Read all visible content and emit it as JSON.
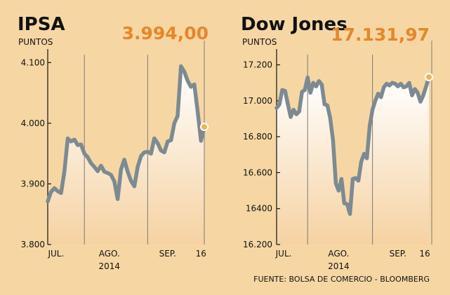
{
  "source_note": "FUENTE: BOLSA DE COMERCIO - BLOOMBERG",
  "colors": {
    "background": "#f6d7a4",
    "plot_top": "#ffffff",
    "plot_bottom": "#f6d2a2",
    "line": "#7d8a92",
    "accent": "#e8862a",
    "marker": "#f2b447"
  },
  "chart_data": [
    {
      "type": "area",
      "title": "IPSA",
      "unit_label": "PUNTOS",
      "last_value_label": "3.994,00",
      "ylim": [
        3800,
        4120
      ],
      "yticks": [
        3800,
        3900,
        4000,
        4100
      ],
      "ytick_labels": [
        "3.800",
        "3.900",
        "4.000",
        "4.100"
      ],
      "xlim": [
        0,
        47
      ],
      "month_labels": [
        {
          "label": "JUL.",
          "x": 2.5
        },
        {
          "label": "AGO.",
          "x": 18.5
        },
        {
          "label": "SEP.",
          "x": 36
        },
        {
          "label": "16",
          "x": 46
        }
      ],
      "year_label": {
        "label": "2014",
        "x": 18.5
      },
      "month_dividers": [
        11,
        30,
        47
      ],
      "grid": false,
      "series": [
        {
          "values": [
            3871,
            3887,
            3893,
            3888,
            3885,
            3920,
            3975,
            3970,
            3973,
            3964,
            3965,
            3950,
            3944,
            3934,
            3928,
            3921,
            3930,
            3920,
            3918,
            3915,
            3904,
            3875,
            3924,
            3940,
            3920,
            3905,
            3896,
            3928,
            3946,
            3952,
            3953,
            3950,
            3975,
            3967,
            3955,
            3952,
            3970,
            3972,
            4000,
            4012,
            4094,
            4085,
            4070,
            4060,
            4064,
            4020,
            3971,
            3994
          ]
        }
      ]
    },
    {
      "type": "area",
      "title": "Dow Jones",
      "unit_label": "PUNTOS",
      "last_value_label": "17.131,97",
      "ylim": [
        16200,
        17280
      ],
      "yticks": [
        16200,
        16400,
        16600,
        16800,
        17000,
        17200
      ],
      "ytick_labels": [
        "16.200",
        "16400",
        "16.600",
        "16.800",
        "17.000",
        "17.200"
      ],
      "xlim": [
        0,
        55
      ],
      "month_labels": [
        {
          "label": "JUL.",
          "x": 2.5
        },
        {
          "label": "AGO.",
          "x": 22
        },
        {
          "label": "SEP.",
          "x": 43
        },
        {
          "label": "16",
          "x": 52.5
        }
      ],
      "year_label": {
        "label": "2014",
        "x": 22
      },
      "month_dividers": [
        11,
        34,
        55
      ],
      "grid": false,
      "series": [
        {
          "values": [
            16960,
            16980,
            17060,
            17055,
            16980,
            16910,
            16950,
            16925,
            16940,
            17050,
            17060,
            17130,
            17045,
            17100,
            17080,
            17110,
            17090,
            16980,
            16975,
            16905,
            16780,
            16540,
            16500,
            16565,
            16430,
            16425,
            16370,
            16565,
            16570,
            16555,
            16660,
            16705,
            16680,
            16860,
            16950,
            17000,
            17040,
            17020,
            17075,
            17095,
            17085,
            17100,
            17095,
            17080,
            17095,
            17075,
            17080,
            17100,
            17030,
            17065,
            17045,
            16995,
            17030,
            17080,
            17131.97
          ]
        }
      ]
    }
  ]
}
